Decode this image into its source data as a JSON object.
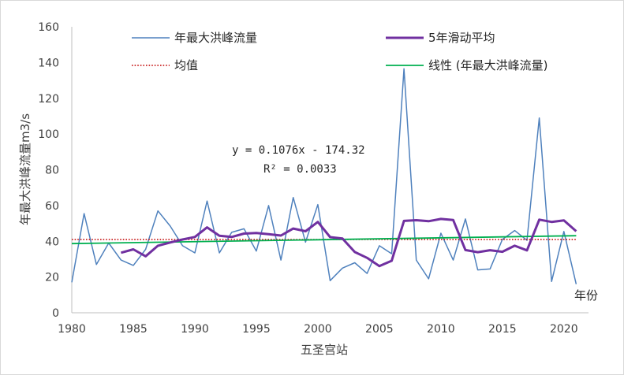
{
  "chart_data": {
    "type": "line",
    "title": "",
    "xlabel": "五圣宫站",
    "ylabel": "年最大洪峰流量m3/s",
    "xlim": [
      1980,
      2022
    ],
    "ylim": [
      0,
      160
    ],
    "x_ticks": [
      1980,
      1985,
      1990,
      1995,
      2000,
      2005,
      2010,
      2015,
      2020
    ],
    "y_ticks": [
      0,
      20,
      40,
      60,
      80,
      100,
      120,
      140,
      160
    ],
    "grid": false,
    "legend_position": "top",
    "equation": "y = 0.1076x - 174.32",
    "r_squared": "R² = 0.0033",
    "annotation": "年份",
    "series": [
      {
        "name": "年最大洪峰流量",
        "style": "solid",
        "color": "#4f81bd",
        "x": [
          1980,
          1981,
          1982,
          1983,
          1984,
          1985,
          1986,
          1987,
          1988,
          1989,
          1990,
          1991,
          1992,
          1993,
          1994,
          1995,
          1996,
          1997,
          1998,
          1999,
          2000,
          2001,
          2002,
          2003,
          2004,
          2005,
          2006,
          2007,
          2008,
          2009,
          2010,
          2011,
          2012,
          2013,
          2014,
          2015,
          2016,
          2017,
          2018,
          2019,
          2020,
          2021
        ],
        "values": [
          17,
          55.5,
          27,
          39,
          29.5,
          26.5,
          35.5,
          57,
          48.5,
          37.5,
          33.5,
          62.5,
          33.5,
          45,
          47,
          34.5,
          60,
          29.5,
          64.5,
          39.5,
          60.5,
          18,
          25,
          28,
          22,
          37.5,
          33,
          136.5,
          29.5,
          19,
          44.5,
          29.5,
          52.5,
          24,
          24.5,
          41,
          46,
          40.5,
          109,
          17.5,
          45.5,
          16
        ]
      },
      {
        "name": "5年滑动平均",
        "style": "solid-thick",
        "color": "#7030a0",
        "x": [
          1984,
          1985,
          1986,
          1987,
          1988,
          1989,
          1990,
          1991,
          1992,
          1993,
          1994,
          1995,
          1996,
          1997,
          1998,
          1999,
          2000,
          2001,
          2002,
          2003,
          2004,
          2005,
          2006,
          2007,
          2008,
          2009,
          2010,
          2011,
          2012,
          2013,
          2014,
          2015,
          2016,
          2017,
          2018,
          2019,
          2020,
          2021
        ],
        "values": [
          33.6,
          35.5,
          31.6,
          37.5,
          39.3,
          41,
          42.4,
          47.8,
          43.1,
          42.4,
          44.3,
          44.6,
          44,
          43.2,
          47.1,
          45.6,
          50.8,
          42.3,
          41.5,
          34,
          30.7,
          26.1,
          29.1,
          51.4,
          51.8,
          51.2,
          52.5,
          51.9,
          35.1,
          33.9,
          35,
          34.1,
          37.5,
          34.9,
          52.1,
          50.8,
          51.7,
          45.6
        ]
      },
      {
        "name": "均值",
        "style": "dotted",
        "color": "#c00000",
        "x": [
          1980,
          2021
        ],
        "values": [
          41,
          41
        ]
      },
      {
        "name": "线性 (年最大洪峰流量)",
        "style": "trendline",
        "color": "#00b050",
        "x": [
          1980,
          2021
        ],
        "values": [
          38.7,
          43.1
        ]
      }
    ]
  }
}
